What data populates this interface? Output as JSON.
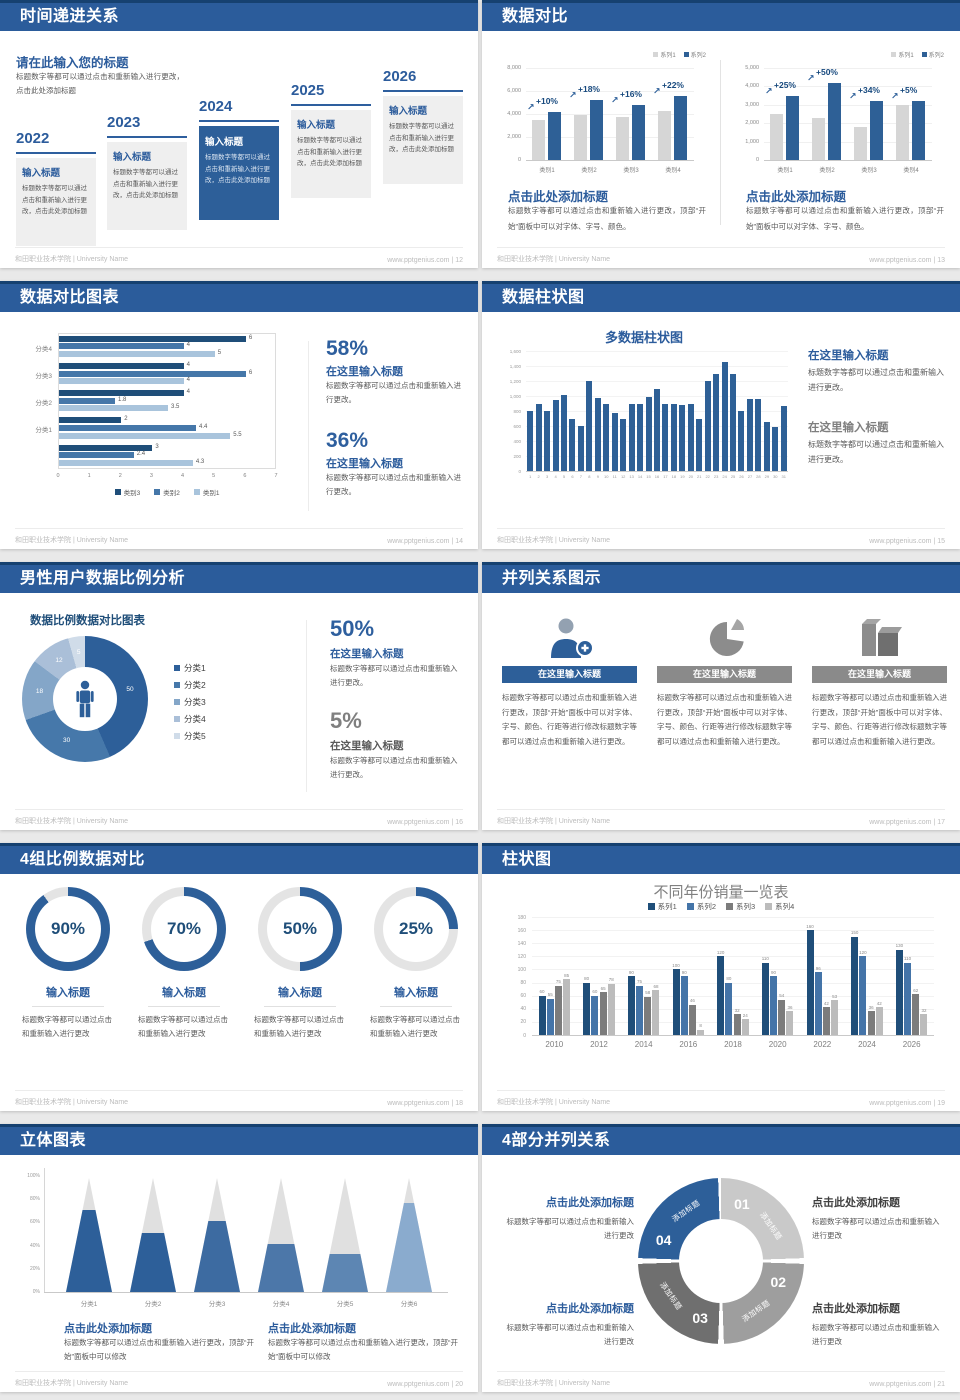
{
  "common": {
    "footer_left": "和田职业技术学院 | University Name"
  },
  "slides": [
    {
      "title": "时间递进关系",
      "footer_right": "www.pptgenius.com | 12",
      "heading": "请在此输入您的标题",
      "intro": "标题数字等都可以通过点击和重新输入进行更改，点击此处添加标题",
      "item_title": "输入标题",
      "item_body": "标题数字等都可以通过点击和重新输入进行更改，点击此处添加标题",
      "years": [
        "2022",
        "2023",
        "2024",
        "2025",
        "2026"
      ]
    },
    {
      "title": "数据对比",
      "footer_right": "www.pptgenius.com | 13",
      "caption_title": "点击此处添加标题",
      "caption_body": "标题数字等都可以通过点击和重新输入进行更改，顶部“开始”面板中可以对字体、字号、颜色。"
    },
    {
      "title": "数据对比图表",
      "footer_right": "www.pptgenius.com | 14",
      "pct1": "58%",
      "pct2": "36%",
      "sub_title": "在这里输入标题",
      "body": "标题数字等都可以通过点击和重新输入进行更改。"
    },
    {
      "title": "数据柱状图",
      "footer_right": "www.pptgenius.com | 15",
      "sub_title": "在这里输入标题",
      "body": "标题数字等都可以通过点击和重新输入进行更改。"
    },
    {
      "title": "男性用户数据比例分析",
      "footer_right": "www.pptgenius.com | 16",
      "pct1": "50%",
      "pct2": "5%",
      "sub_title": "在这里输入标题",
      "body": "标题数字等都可以通过点击和重新输入进行更改。"
    },
    {
      "title": "并列关系图示",
      "footer_right": "www.pptgenius.com | 17",
      "button_label": "在这里输入标题",
      "body": "标题数字等都可以通过点击和重新输入进行更改，顶部“开始”面板中可以对字体、字号、颜色、行距等进行修改标题数字等都可以通过点击和重新输入进行更改。"
    },
    {
      "title": "4组比例数据对比",
      "footer_right": "www.pptgenius.com | 18",
      "item_title": "输入标题",
      "body": "标题数字等都可以通过点击和重新输入进行更改"
    },
    {
      "title": "柱状图",
      "footer_right": "www.pptgenius.com | 19"
    },
    {
      "title": "立体图表",
      "footer_right": "www.pptgenius.com | 20",
      "caption_title": "点击此处添加标题",
      "caption_body": "标题数字等都可以通过点击和重新输入进行更改，顶部“开始”面板中可以修改"
    },
    {
      "title": "4部分并列关系",
      "footer_right": "www.pptgenius.com | 21",
      "caption_title": "点击此处添加标题",
      "caption_body": "标题数字等都可以通过点击和重新输入进行更改"
    }
  ],
  "chart_data": [
    {
      "type": "bar",
      "categories": [
        "类别1",
        "类别2",
        "类别3",
        "类别4"
      ],
      "series": [
        {
          "name": "系列1",
          "color": "#d6d6d6",
          "values": [
            3500,
            3900,
            3700,
            4300
          ]
        },
        {
          "name": "系列2",
          "color": "#2e6096",
          "values": [
            4200,
            5200,
            4800,
            5600
          ]
        }
      ],
      "growth_labels": [
        "+10%",
        "+18%",
        "+16%",
        "+22%"
      ],
      "ylim": [
        0,
        8000
      ],
      "yticks": [
        "8,000",
        "6,000",
        "4,000",
        "2,000",
        "0"
      ]
    },
    {
      "type": "bar",
      "categories": [
        "类别1",
        "类别2",
        "类别3",
        "类别4"
      ],
      "series": [
        {
          "name": "系列1",
          "color": "#d6d6d6",
          "values": [
            2500,
            2300,
            1800,
            3000
          ]
        },
        {
          "name": "系列2",
          "color": "#2e6096",
          "values": [
            3500,
            4200,
            3200,
            3200
          ]
        }
      ],
      "growth_labels": [
        "+25%",
        "+50%",
        "+34%",
        "+5%"
      ],
      "ylim": [
        0,
        5000
      ],
      "yticks": [
        "5,000",
        "4,000",
        "3,000",
        "2,000",
        "1,000",
        "0"
      ]
    },
    {
      "type": "hbar",
      "categories": [
        "分类4",
        "分类3",
        "分类2",
        "分类1",
        ""
      ],
      "series": [
        {
          "name": "类别3",
          "color": "#1f4e79",
          "values": [
            6,
            4,
            4,
            2,
            3
          ]
        },
        {
          "name": "类别2",
          "color": "#4577a9",
          "values": [
            4,
            6,
            1.8,
            4.4,
            2.4
          ]
        },
        {
          "name": "类别1",
          "color": "#a9c4dc",
          "values": [
            5,
            4,
            3.5,
            5.5,
            4.3
          ]
        }
      ],
      "xlim": [
        0,
        7
      ],
      "xticks": [
        "0",
        "1",
        "2",
        "3",
        "4",
        "5",
        "6",
        "7"
      ]
    },
    {
      "type": "bar",
      "title": "多数据柱状图",
      "color": "#2e6096",
      "x": [
        "1",
        "2",
        "3",
        "4",
        "5",
        "6",
        "7",
        "8",
        "9",
        "10",
        "11",
        "12",
        "13",
        "14",
        "15",
        "16",
        "17",
        "18",
        "19",
        "20",
        "21",
        "22",
        "23",
        "24",
        "25",
        "26",
        "27",
        "28",
        "29",
        "30",
        "31"
      ],
      "values": [
        800,
        900,
        800,
        950,
        1020,
        700,
        600,
        1200,
        980,
        900,
        780,
        700,
        890,
        890,
        990,
        1100,
        900,
        900,
        880,
        900,
        700,
        1200,
        1300,
        1450,
        1300,
        800,
        960,
        960,
        660,
        590,
        870
      ],
      "ylim": [
        0,
        1600
      ],
      "yticks": [
        "1,600",
        "1,400",
        "1,200",
        "1,000",
        "800",
        "600",
        "400",
        "200",
        "0"
      ]
    },
    {
      "type": "donut",
      "title": "数据比例数据对比图表",
      "labels": [
        "分类1",
        "分类2",
        "分类3",
        "分类4",
        "分类5"
      ],
      "values": [
        50,
        30,
        18,
        12,
        5
      ],
      "colors": [
        "#2d5f99",
        "#4678aa",
        "#84a6c8",
        "#aabfd8",
        "#d0dce9"
      ]
    },
    {
      "type": "gauge",
      "values": [
        90,
        70,
        50,
        25
      ],
      "labels": [
        "90%",
        "70%",
        "50%",
        "25%"
      ],
      "color": "#2d5f99",
      "track": "#e4e4e4"
    },
    {
      "type": "bar",
      "title": "不同年份销量一览表",
      "categories": [
        "2010",
        "2012",
        "2014",
        "2016",
        "2018",
        "2020",
        "2022",
        "2024",
        "2026"
      ],
      "series": [
        {
          "name": "系列1",
          "color": "#1f4e79",
          "values": [
            60,
            80,
            90,
            100,
            120,
            110,
            160,
            150,
            130
          ]
        },
        {
          "name": "系列2",
          "color": "#4474a8",
          "values": [
            55,
            60,
            75,
            90,
            80,
            90,
            96,
            120,
            110
          ]
        },
        {
          "name": "系列3",
          "color": "#7c7c7c",
          "values": [
            75,
            65,
            58,
            46,
            32,
            54,
            42,
            36,
            62
          ]
        },
        {
          "name": "系列4",
          "color": "#bcbcbc",
          "values": [
            85,
            78,
            68,
            8,
            24,
            36,
            53,
            42,
            32
          ]
        }
      ],
      "ylim": [
        0,
        180
      ],
      "yticks": [
        "180",
        "160",
        "140",
        "120",
        "100",
        "80",
        "60",
        "40",
        "20",
        "0"
      ]
    },
    {
      "type": "cone",
      "categories": [
        "分类1",
        "分类2",
        "分类3",
        "分类4",
        "分类5",
        "分类6"
      ],
      "values": [
        72,
        52,
        62,
        42,
        33,
        78
      ],
      "colors": [
        "#2d5f99",
        "#2d5f99",
        "#3d6ba1",
        "#4c77a9",
        "#5d86b3",
        "#8aabce"
      ],
      "yticks": [
        "100%",
        "80%",
        "60%",
        "40%",
        "20%",
        "0%"
      ]
    },
    {
      "type": "ring4",
      "numbers": [
        "01",
        "02",
        "03",
        "04"
      ],
      "seg_label": "添加标题",
      "colors": [
        "#c9c9c9",
        "#9e9e9e",
        "#6f6f6f",
        "#2d5f99"
      ]
    }
  ]
}
